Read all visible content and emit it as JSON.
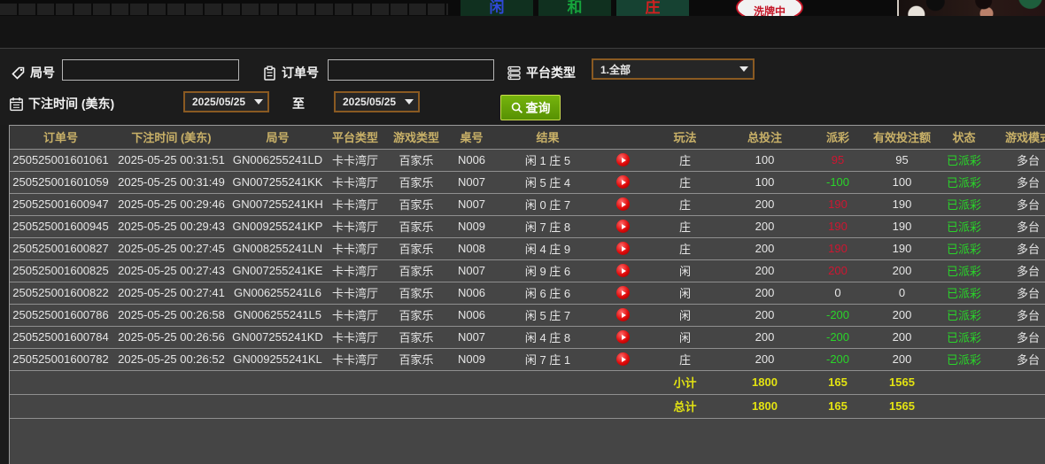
{
  "colors": {
    "accent_gold": "#c9b168",
    "win_red": "#ce1631",
    "loss_green": "#29d429",
    "total_yellow": "#e3e312",
    "search_green": "#579103",
    "select_border_orange": "#8a5a22"
  },
  "top_strip": {
    "bet_areas": [
      {
        "label": "闲",
        "color": "#2f49d8"
      },
      {
        "label": "和",
        "color": "#16a33c"
      },
      {
        "label": "庄",
        "color": "#d42020"
      }
    ],
    "shuffle_badge": "洗牌中"
  },
  "filters": {
    "round_label": "局号",
    "round_value": "",
    "order_label": "订单号",
    "order_value": "",
    "platform_label": "平台类型",
    "platform_value": "1.全部",
    "bet_time_label": "下注时间 (美东)",
    "date_from": "2025/05/25",
    "to_label": "至",
    "date_to": "2025/05/25",
    "search_label": "查询"
  },
  "table": {
    "headers": [
      "订单号",
      "下注时间 (美东)",
      "局号",
      "平台类型",
      "游戏类型",
      "桌号",
      "结果",
      "玩法",
      "总投注",
      "派彩",
      "有效投注额",
      "状态",
      "游戏模式"
    ],
    "rows": [
      {
        "order_id": "250525001601061",
        "bet_time": "2025-05-25 00:31:51",
        "round_id": "GN006255241LD",
        "platform": "卡卡湾厅",
        "game_type": "百家乐",
        "table_no": "N006",
        "result": "闲 1 庄 5",
        "play": "庄",
        "total_bet": "100",
        "payout": "95",
        "valid_bet": "95",
        "status": "已派彩",
        "mode": "多台"
      },
      {
        "order_id": "250525001601059",
        "bet_time": "2025-05-25 00:31:49",
        "round_id": "GN007255241KK",
        "platform": "卡卡湾厅",
        "game_type": "百家乐",
        "table_no": "N007",
        "result": "闲 5 庄 4",
        "play": "庄",
        "total_bet": "100",
        "payout": "-100",
        "valid_bet": "100",
        "status": "已派彩",
        "mode": "多台"
      },
      {
        "order_id": "250525001600947",
        "bet_time": "2025-05-25 00:29:46",
        "round_id": "GN007255241KH",
        "platform": "卡卡湾厅",
        "game_type": "百家乐",
        "table_no": "N007",
        "result": "闲 0 庄 7",
        "play": "庄",
        "total_bet": "200",
        "payout": "190",
        "valid_bet": "190",
        "status": "已派彩",
        "mode": "多台"
      },
      {
        "order_id": "250525001600945",
        "bet_time": "2025-05-25 00:29:43",
        "round_id": "GN009255241KP",
        "platform": "卡卡湾厅",
        "game_type": "百家乐",
        "table_no": "N009",
        "result": "闲 7 庄 8",
        "play": "庄",
        "total_bet": "200",
        "payout": "190",
        "valid_bet": "190",
        "status": "已派彩",
        "mode": "多台"
      },
      {
        "order_id": "250525001600827",
        "bet_time": "2025-05-25 00:27:45",
        "round_id": "GN008255241LN",
        "platform": "卡卡湾厅",
        "game_type": "百家乐",
        "table_no": "N008",
        "result": "闲 4 庄 9",
        "play": "庄",
        "total_bet": "200",
        "payout": "190",
        "valid_bet": "190",
        "status": "已派彩",
        "mode": "多台"
      },
      {
        "order_id": "250525001600825",
        "bet_time": "2025-05-25 00:27:43",
        "round_id": "GN007255241KE",
        "platform": "卡卡湾厅",
        "game_type": "百家乐",
        "table_no": "N007",
        "result": "闲 9 庄 6",
        "play": "闲",
        "total_bet": "200",
        "payout": "200",
        "valid_bet": "200",
        "status": "已派彩",
        "mode": "多台"
      },
      {
        "order_id": "250525001600822",
        "bet_time": "2025-05-25 00:27:41",
        "round_id": "GN006255241L6",
        "platform": "卡卡湾厅",
        "game_type": "百家乐",
        "table_no": "N006",
        "result": "闲 6 庄 6",
        "play": "闲",
        "total_bet": "200",
        "payout": "0",
        "valid_bet": "0",
        "status": "已派彩",
        "mode": "多台"
      },
      {
        "order_id": "250525001600786",
        "bet_time": "2025-05-25 00:26:58",
        "round_id": "GN006255241L5",
        "platform": "卡卡湾厅",
        "game_type": "百家乐",
        "table_no": "N006",
        "result": "闲 5 庄 7",
        "play": "闲",
        "total_bet": "200",
        "payout": "-200",
        "valid_bet": "200",
        "status": "已派彩",
        "mode": "多台"
      },
      {
        "order_id": "250525001600784",
        "bet_time": "2025-05-25 00:26:56",
        "round_id": "GN007255241KD",
        "platform": "卡卡湾厅",
        "game_type": "百家乐",
        "table_no": "N007",
        "result": "闲 4 庄 8",
        "play": "闲",
        "total_bet": "200",
        "payout": "-200",
        "valid_bet": "200",
        "status": "已派彩",
        "mode": "多台"
      },
      {
        "order_id": "250525001600782",
        "bet_time": "2025-05-25 00:26:52",
        "round_id": "GN009255241KL",
        "platform": "卡卡湾厅",
        "game_type": "百家乐",
        "table_no": "N009",
        "result": "闲 7 庄 1",
        "play": "庄",
        "total_bet": "200",
        "payout": "-200",
        "valid_bet": "200",
        "status": "已派彩",
        "mode": "多台"
      }
    ],
    "subtotal": {
      "label": "小计",
      "total_bet": "1800",
      "payout": "165",
      "valid_bet": "1565"
    },
    "total": {
      "label": "总计",
      "total_bet": "1800",
      "payout": "165",
      "valid_bet": "1565"
    }
  }
}
